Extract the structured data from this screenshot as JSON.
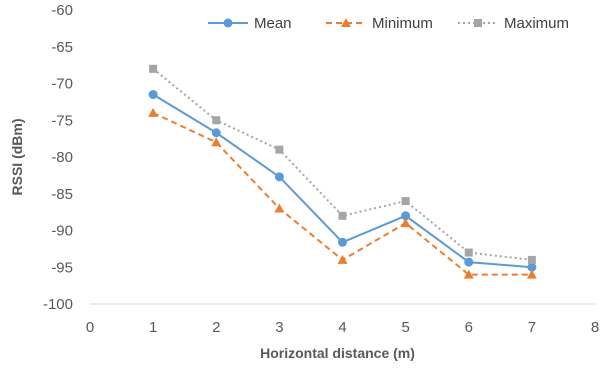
{
  "chart_data": {
    "type": "line",
    "title": "",
    "xlabel": "Horizontal distance (m)",
    "ylabel": "RSSI (dBm)",
    "xlim": [
      0,
      8
    ],
    "ylim": [
      -100,
      -60
    ],
    "xticks": [
      0,
      1,
      2,
      3,
      4,
      5,
      6,
      7,
      8
    ],
    "yticks": [
      -100,
      -95,
      -90,
      -85,
      -80,
      -75,
      -70,
      -65,
      -60
    ],
    "grid": false,
    "legend_position": "top-right",
    "x": [
      1,
      2,
      3,
      4,
      5,
      6,
      7
    ],
    "series": [
      {
        "name": "Mean",
        "color": "#5B9BD5",
        "line": "solid",
        "marker": "circle",
        "values": [
          -71.5,
          -76.7,
          -82.7,
          -91.6,
          -88.0,
          -94.3,
          -95.0
        ]
      },
      {
        "name": "Minimum",
        "color": "#ED7D31",
        "line": "dashed",
        "marker": "triangle",
        "values": [
          -74.0,
          -78.0,
          -87.0,
          -94.0,
          -89.0,
          -96.0,
          -96.0
        ]
      },
      {
        "name": "Maximum",
        "color": "#A5A5A5",
        "line": "dotted",
        "marker": "square",
        "values": [
          -68.0,
          -75.0,
          -79.0,
          -88.0,
          -86.0,
          -93.0,
          -94.0
        ]
      }
    ]
  }
}
